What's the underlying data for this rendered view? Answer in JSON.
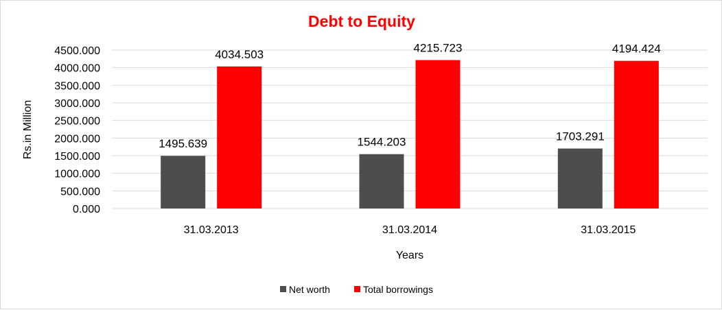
{
  "chart_data": {
    "type": "bar",
    "title": "Debt to Equity",
    "title_color": "#ff0000",
    "xlabel": "Years",
    "ylabel": "Rs.in Million",
    "categories": [
      "31.03.2013",
      "31.03.2014",
      "31.03.2015"
    ],
    "series": [
      {
        "name": "Net worth",
        "color": "#4d4d4d",
        "values": [
          1495.639,
          1544.203,
          1703.291
        ]
      },
      {
        "name": "Total borrowings",
        "color": "#ff0000",
        "values": [
          4034.503,
          4215.723,
          4194.424
        ]
      }
    ],
    "ylim": [
      0,
      4500
    ],
    "yticks": [
      "0.000",
      "500.000",
      "1000.000",
      "1500.000",
      "2000.000",
      "2500.000",
      "3000.000",
      "3500.000",
      "4000.000",
      "4500.000"
    ],
    "grid": true,
    "legend_position": "bottom"
  }
}
